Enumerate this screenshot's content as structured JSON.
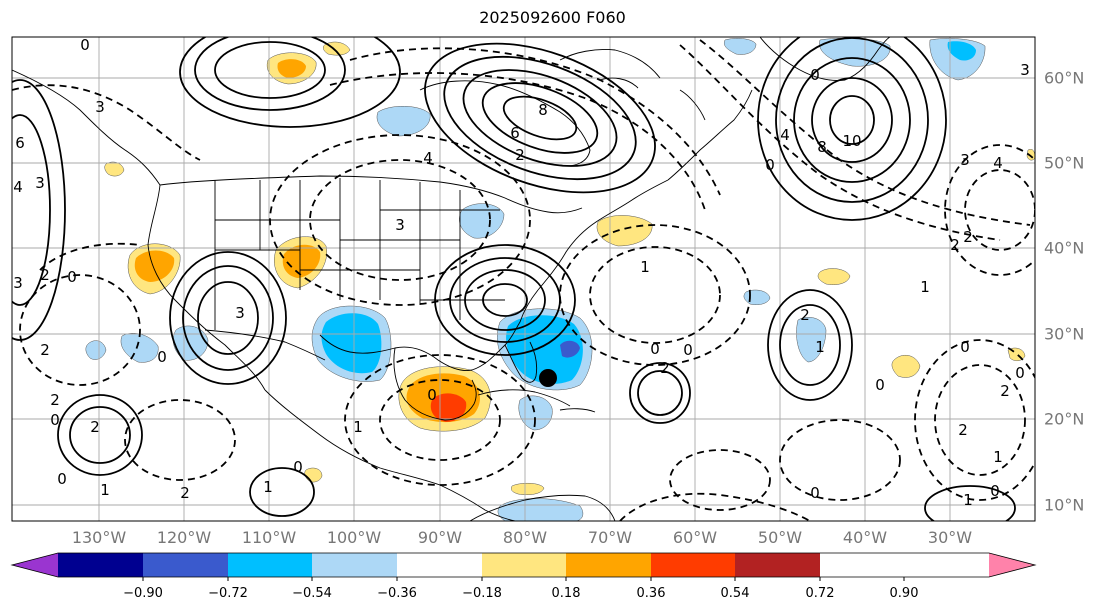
{
  "title": "2025092600 F060",
  "longitude_labels": [
    "130°W",
    "120°W",
    "110°W",
    "100°W",
    "90°W",
    "80°W",
    "70°W",
    "60°W",
    "50°W",
    "40°W",
    "30°W"
  ],
  "latitude_labels": [
    "60°N",
    "50°N",
    "40°N",
    "30°N",
    "20°N",
    "10°N"
  ],
  "colorbar": {
    "tick_labels": [
      "−0.90",
      "−0.72",
      "−0.54",
      "−0.36",
      "−0.18",
      "0.18",
      "0.36",
      "0.54",
      "0.72",
      "0.90"
    ],
    "colors": [
      "#9a35d0",
      "#000090",
      "#3a5acd",
      "#00bfff",
      "#add8f6",
      "#ffffff",
      "#ffe680",
      "#ffa500",
      "#ff3c00",
      "#b22222",
      "#ff82aa"
    ]
  },
  "contour_labels": [
    {
      "text": "0"
    },
    {
      "text": "3"
    },
    {
      "text": "6"
    },
    {
      "text": "3"
    },
    {
      "text": "4"
    },
    {
      "text": "3"
    },
    {
      "text": "2"
    },
    {
      "text": "4"
    },
    {
      "text": "8"
    },
    {
      "text": "6"
    },
    {
      "text": "2"
    },
    {
      "text": "10"
    },
    {
      "text": "8"
    },
    {
      "text": "4"
    },
    {
      "text": "3"
    },
    {
      "text": "4"
    },
    {
      "text": "3"
    },
    {
      "text": "0"
    },
    {
      "text": "3"
    },
    {
      "text": "0"
    },
    {
      "text": "2"
    },
    {
      "text": "2"
    },
    {
      "text": "0"
    },
    {
      "text": "0"
    },
    {
      "text": "2"
    },
    {
      "text": "3"
    },
    {
      "text": "0"
    },
    {
      "text": "1"
    },
    {
      "text": "0"
    },
    {
      "text": "2"
    },
    {
      "text": "0"
    },
    {
      "text": "2"
    },
    {
      "text": "2"
    },
    {
      "text": "1"
    },
    {
      "text": "0"
    },
    {
      "text": "1"
    },
    {
      "text": "0"
    },
    {
      "text": "1"
    },
    {
      "text": "2"
    },
    {
      "text": "0"
    },
    {
      "text": "0"
    },
    {
      "text": "1"
    },
    {
      "text": "0"
    },
    {
      "text": "2"
    },
    {
      "text": "2"
    },
    {
      "text": "1"
    },
    {
      "text": "0"
    },
    {
      "text": "1"
    },
    {
      "text": "1"
    },
    {
      "text": "0"
    },
    {
      "text": "0"
    },
    {
      "text": "2"
    }
  ],
  "marker": {
    "name": "storm-center-marker"
  }
}
